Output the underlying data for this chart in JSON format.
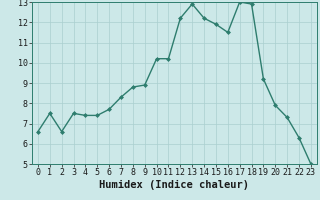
{
  "x": [
    0,
    1,
    2,
    3,
    4,
    5,
    6,
    7,
    8,
    9,
    10,
    11,
    12,
    13,
    14,
    15,
    16,
    17,
    18,
    19,
    20,
    21,
    22,
    23
  ],
  "y": [
    6.6,
    7.5,
    6.6,
    7.5,
    7.4,
    7.4,
    7.7,
    8.3,
    8.8,
    8.9,
    10.2,
    10.2,
    12.2,
    12.9,
    12.2,
    11.9,
    11.5,
    13.0,
    12.9,
    9.2,
    7.9,
    7.3,
    6.3,
    5.0
  ],
  "line_color": "#2e7d6e",
  "marker": "D",
  "marker_size": 2.0,
  "bg_color": "#cce8e8",
  "grid_color": "#aacfcf",
  "xlabel": "Humidex (Indice chaleur)",
  "ylim": [
    5,
    13
  ],
  "xlim": [
    -0.5,
    23.5
  ],
  "yticks": [
    5,
    6,
    7,
    8,
    9,
    10,
    11,
    12,
    13
  ],
  "xticks": [
    0,
    1,
    2,
    3,
    4,
    5,
    6,
    7,
    8,
    9,
    10,
    11,
    12,
    13,
    14,
    15,
    16,
    17,
    18,
    19,
    20,
    21,
    22,
    23
  ],
  "tick_fontsize": 6,
  "xlabel_fontsize": 7.5,
  "line_width": 1.0
}
